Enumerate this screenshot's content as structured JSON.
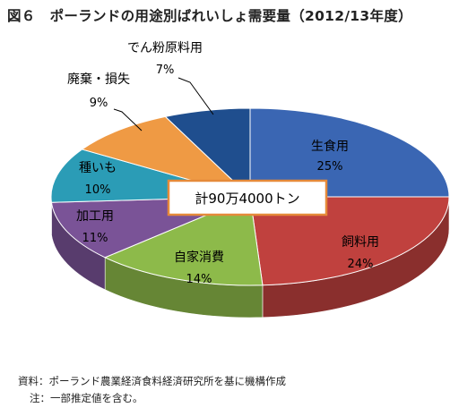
{
  "title": {
    "figure": "図６",
    "text": "ポーランドの用途別ばれいしょ需要量（2012/13年度）"
  },
  "chart_data": {
    "type": "pie",
    "style": "3d",
    "center_label": "計90万4000トン",
    "slices": [
      {
        "label": "生食用",
        "pct_label": "25%",
        "value": 25,
        "color": "#3a66b3"
      },
      {
        "label": "飼料用",
        "pct_label": "24%",
        "value": 24,
        "color": "#c0413e"
      },
      {
        "label": "自家消費",
        "pct_label": "14%",
        "value": 14,
        "color": "#8dba4a"
      },
      {
        "label": "加工用",
        "pct_label": "11%",
        "value": 11,
        "color": "#7a5397"
      },
      {
        "label": "種いも",
        "pct_label": "10%",
        "value": 10,
        "color": "#2b9cb6"
      },
      {
        "label": "廃棄・損失",
        "pct_label": "9%",
        "value": 9,
        "color": "#ef9a44"
      },
      {
        "label": "でん粉原料用",
        "pct_label": "7%",
        "value": 7,
        "color": "#1f4e8e"
      }
    ]
  },
  "notes": {
    "source": "資料：ポーランド農業経済食料経済研究所を基に機構作成",
    "note": "注：一部推定値を含む。"
  }
}
